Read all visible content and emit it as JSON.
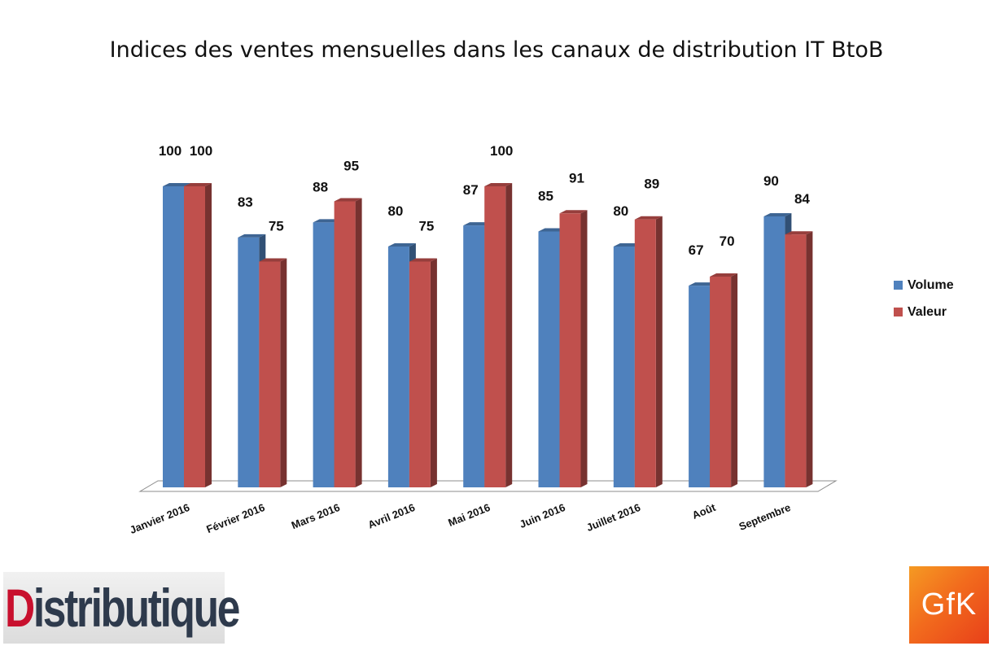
{
  "chart_data": {
    "type": "bar",
    "title": "Indices des ventes mensuelles dans les canaux de distribution IT BtoB",
    "categories": [
      "Janvier 2016",
      "Février 2016",
      "Mars 2016",
      "Avril 2016",
      "Mai 2016",
      "Juin 2016",
      "Juillet 2016",
      "Août",
      "Septembre"
    ],
    "series": [
      {
        "name": "Volume",
        "values": [
          100,
          83,
          88,
          80,
          87,
          85,
          80,
          67,
          90
        ],
        "color": "#4f81bd"
      },
      {
        "name": "Valeur",
        "values": [
          100,
          75,
          95,
          75,
          100,
          91,
          89,
          70,
          84
        ],
        "color": "#c0504d"
      }
    ],
    "ylim": [
      0,
      100
    ],
    "grid": false,
    "legend": "right",
    "data_labels": true
  },
  "logos": {
    "left": {
      "text_red": "D",
      "text_dark": "istributique"
    },
    "right": {
      "text": "GfK"
    }
  }
}
